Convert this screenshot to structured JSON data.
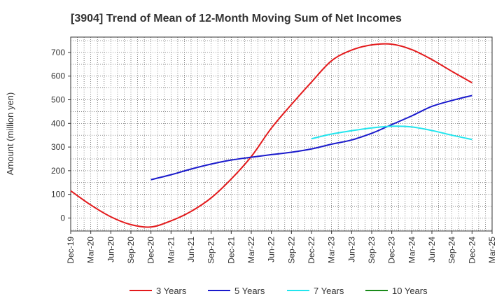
{
  "chart_data": {
    "type": "line",
    "title": "[3904]  Trend of Mean of 12-Month Moving Sum of Net Incomes",
    "ylabel": "Amount (million yen)",
    "xlabel": "",
    "x_labels": [
      "Dec-19",
      "Mar-20",
      "Jun-20",
      "Sep-20",
      "Dec-20",
      "Mar-21",
      "Jun-21",
      "Sep-21",
      "Dec-21",
      "Mar-22",
      "Jun-22",
      "Sep-22",
      "Dec-22",
      "Mar-23",
      "Jun-23",
      "Sep-23",
      "Dec-23",
      "Mar-24",
      "Jun-24",
      "Sep-24",
      "Dec-24",
      "Mar-25"
    ],
    "yticks": [
      0,
      100,
      200,
      300,
      400,
      500,
      600,
      700
    ],
    "ylim": [
      -55,
      765
    ],
    "grid": true,
    "legend_position": "bottom",
    "series": [
      {
        "name": "3 Years",
        "color": "#e31a1c",
        "values": [
          115,
          55,
          5,
          -28,
          -38,
          -12,
          28,
          85,
          165,
          260,
          380,
          480,
          575,
          665,
          710,
          732,
          735,
          712,
          670,
          620,
          572,
          null
        ]
      },
      {
        "name": "5 Years",
        "color": "#1a1acc",
        "values": [
          null,
          null,
          null,
          null,
          162,
          183,
          207,
          228,
          245,
          257,
          268,
          278,
          292,
          312,
          330,
          358,
          395,
          432,
          472,
          497,
          518,
          null
        ]
      },
      {
        "name": "7 Years",
        "color": "#22e5ee",
        "values": [
          null,
          null,
          null,
          null,
          null,
          null,
          null,
          null,
          null,
          null,
          null,
          null,
          335,
          355,
          369,
          381,
          388,
          385,
          370,
          350,
          332,
          null
        ]
      },
      {
        "name": "10 Years",
        "color": "#1a8a1a",
        "values": []
      }
    ]
  }
}
